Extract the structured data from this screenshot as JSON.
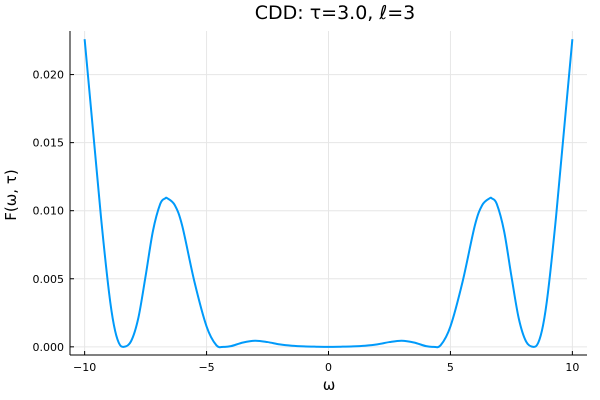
{
  "chart_data": {
    "type": "line",
    "title": "CDD: τ=3.0, ℓ=3",
    "xlabel": "ω",
    "ylabel": "F(ω, τ)",
    "xlim": [
      -10.6,
      10.6
    ],
    "ylim": [
      -0.0006,
      0.0232
    ],
    "xticks": [
      -10,
      -5,
      0,
      5,
      10
    ],
    "xtick_labels": [
      "−10",
      "−5",
      "0",
      "5",
      "10"
    ],
    "yticks": [
      0.0,
      0.005,
      0.01,
      0.015,
      0.02
    ],
    "ytick_labels": [
      "0.000",
      "0.005",
      "0.010",
      "0.015",
      "0.020"
    ],
    "grid": true,
    "legend": false,
    "line_color": "#009AFA",
    "series": [
      {
        "x": [
          0,
          0.5,
          1.0,
          1.5,
          2.0,
          2.5,
          3.0,
          3.5,
          4.0,
          4.3,
          4.6,
          5.0,
          5.5,
          6.0,
          6.3,
          6.6,
          6.7,
          6.9,
          7.2,
          7.5,
          7.8,
          8.1,
          8.4,
          8.6,
          8.8,
          9.0,
          9.3,
          9.6,
          10.0
        ],
        "y": [
          0.0,
          1e-05,
          3e-05,
          8e-05,
          0.00018,
          0.00035,
          0.00045,
          0.00032,
          5e-05,
          0.0,
          0.00012,
          0.0015,
          0.0048,
          0.0089,
          0.0104,
          0.0109,
          0.0109,
          0.0105,
          0.0085,
          0.0052,
          0.0021,
          0.0004,
          0.0,
          0.0003,
          0.0016,
          0.004,
          0.009,
          0.0148,
          0.0226
        ]
      }
    ]
  }
}
